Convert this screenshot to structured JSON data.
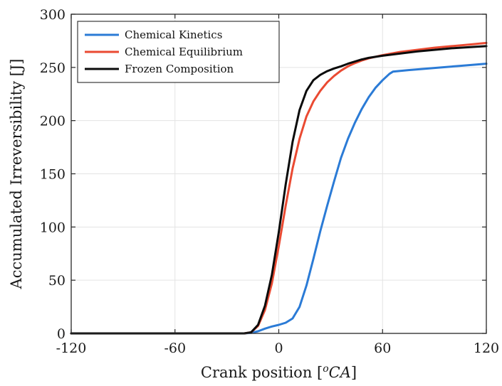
{
  "chart_data": {
    "type": "line",
    "xlabel": "Crank position [°CA]",
    "xlabel_parts": {
      "prefix": "Crank position [",
      "sup": "o",
      "italic": "CA",
      "suffix": "]"
    },
    "ylabel": "Accumulated Irreversibility [J]",
    "xlim": [
      -120,
      120
    ],
    "ylim": [
      0,
      300
    ],
    "xticks": [
      -120,
      -60,
      0,
      60,
      120
    ],
    "yticks": [
      0,
      50,
      100,
      150,
      200,
      250,
      300
    ],
    "grid": true,
    "legend_position": "top-left",
    "series": [
      {
        "name": "Chemical Kinetics",
        "color": "#2b7bd6",
        "points": [
          [
            -120,
            0
          ],
          [
            -60,
            0
          ],
          [
            -20,
            0
          ],
          [
            -16,
            0.5
          ],
          [
            -12,
            2
          ],
          [
            -8,
            4.5
          ],
          [
            -4,
            6.5
          ],
          [
            0,
            8
          ],
          [
            4,
            10
          ],
          [
            8,
            14
          ],
          [
            12,
            25
          ],
          [
            16,
            45
          ],
          [
            20,
            70
          ],
          [
            24,
            96
          ],
          [
            28,
            120
          ],
          [
            32,
            143
          ],
          [
            36,
            165
          ],
          [
            40,
            183
          ],
          [
            44,
            198
          ],
          [
            48,
            211
          ],
          [
            52,
            222
          ],
          [
            56,
            231
          ],
          [
            60,
            238
          ],
          [
            64,
            244
          ],
          [
            66,
            246
          ],
          [
            75,
            247.5
          ],
          [
            90,
            249.5
          ],
          [
            105,
            251.5
          ],
          [
            120,
            253.5
          ]
        ]
      },
      {
        "name": "Chemical Equilibrium",
        "color": "#ea4a32",
        "points": [
          [
            -120,
            0
          ],
          [
            -60,
            0
          ],
          [
            -20,
            0
          ],
          [
            -16,
            1
          ],
          [
            -12,
            7
          ],
          [
            -8,
            22
          ],
          [
            -4,
            47
          ],
          [
            0,
            82
          ],
          [
            4,
            120
          ],
          [
            8,
            155
          ],
          [
            12,
            183
          ],
          [
            16,
            204
          ],
          [
            20,
            218
          ],
          [
            24,
            228
          ],
          [
            28,
            236
          ],
          [
            32,
            242
          ],
          [
            36,
            247
          ],
          [
            40,
            251
          ],
          [
            44,
            254
          ],
          [
            48,
            256.5
          ],
          [
            52,
            258.5
          ],
          [
            60,
            261.5
          ],
          [
            70,
            264.5
          ],
          [
            80,
            266.5
          ],
          [
            90,
            268.5
          ],
          [
            100,
            270
          ],
          [
            110,
            271.5
          ],
          [
            120,
            273
          ]
        ]
      },
      {
        "name": "Frozen Composition",
        "color": "#0b0b0b",
        "points": [
          [
            -120,
            0
          ],
          [
            -60,
            0
          ],
          [
            -20,
            0
          ],
          [
            -16,
            1
          ],
          [
            -12,
            8
          ],
          [
            -8,
            26
          ],
          [
            -4,
            55
          ],
          [
            0,
            95
          ],
          [
            4,
            140
          ],
          [
            8,
            180
          ],
          [
            12,
            210
          ],
          [
            16,
            228
          ],
          [
            20,
            238
          ],
          [
            24,
            243
          ],
          [
            28,
            246.5
          ],
          [
            32,
            249
          ],
          [
            36,
            251
          ],
          [
            40,
            253.5
          ],
          [
            44,
            255.5
          ],
          [
            48,
            257.5
          ],
          [
            52,
            259
          ],
          [
            60,
            261
          ],
          [
            70,
            263
          ],
          [
            80,
            265
          ],
          [
            90,
            266.5
          ],
          [
            100,
            268
          ],
          [
            110,
            269
          ],
          [
            120,
            270
          ]
        ]
      }
    ]
  }
}
